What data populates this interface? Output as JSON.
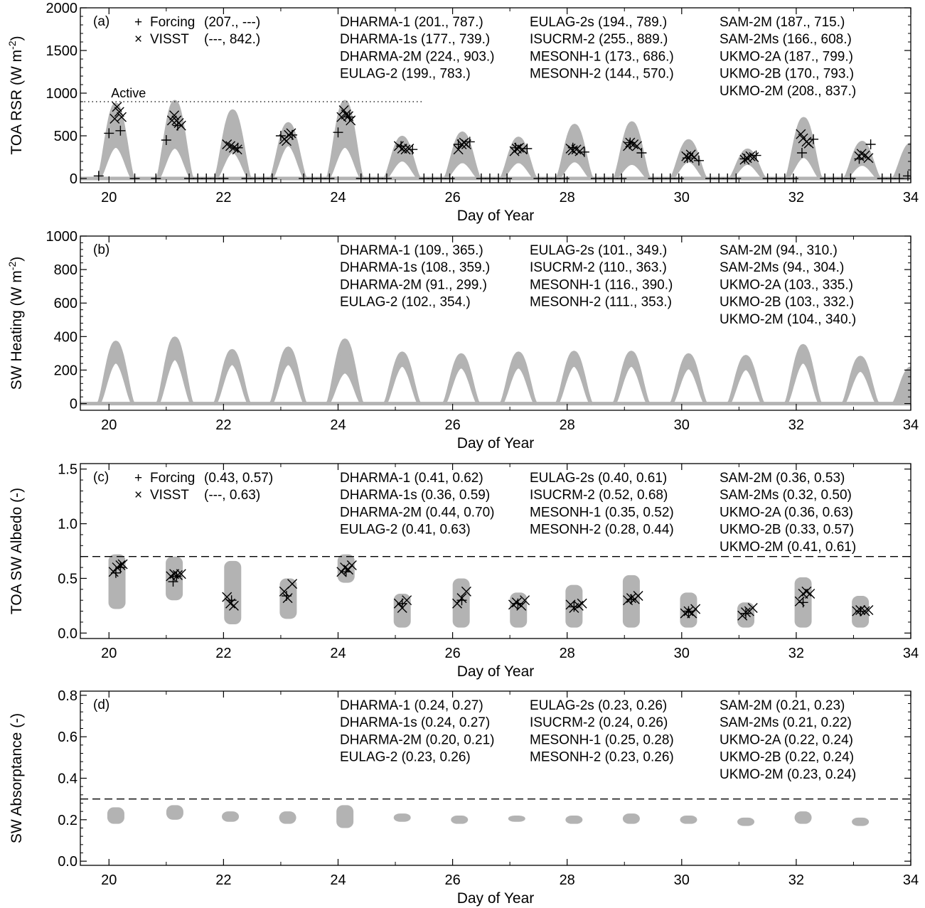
{
  "chart_data": [
    {
      "type": "scatter",
      "panel_label": "(a)",
      "ylabel": "TOA RSR (W m",
      "ylabel_sup": "-2",
      "ylabel_close": ")",
      "xlabel": "Day of Year",
      "xlim": [
        19.5,
        34
      ],
      "ylim": [
        -50,
        2000
      ],
      "xticks": [
        "20",
        "22",
        "24",
        "26",
        "28",
        "30",
        "32",
        "34"
      ],
      "yticks": [
        "0",
        "500",
        "1000",
        "1500",
        "2000"
      ],
      "reference_line": {
        "style": "dotted",
        "y": 900,
        "x_end": 25.5,
        "label": "Active"
      },
      "envelope": {
        "mode": "diurnal",
        "peaks": [
          [
            20.12,
            380,
            870
          ],
          [
            21.15,
            370,
            900
          ],
          [
            22.16,
            320,
            790
          ],
          [
            23.13,
            400,
            640
          ],
          [
            24.12,
            380,
            900
          ],
          [
            25.12,
            220,
            480
          ],
          [
            26.17,
            200,
            530
          ],
          [
            27.15,
            200,
            470
          ],
          [
            28.13,
            210,
            620
          ],
          [
            29.13,
            180,
            650
          ],
          [
            30.12,
            210,
            440
          ],
          [
            31.15,
            180,
            330
          ],
          [
            32.13,
            260,
            700
          ],
          [
            33.15,
            170,
            420
          ],
          [
            34.0,
            0,
            400
          ]
        ]
      },
      "series": [
        {
          "name": "Forcing",
          "marker": "plus",
          "x": [
            19.82,
            20.0,
            20.2,
            20.45,
            20.82,
            21.0,
            21.2,
            21.4,
            21.55,
            21.7,
            21.85,
            22.0,
            22.25,
            22.4,
            22.55,
            22.7,
            22.85,
            23.0,
            23.2,
            23.4,
            23.55,
            23.7,
            23.85,
            24.0,
            24.2,
            24.4,
            24.55,
            24.7,
            24.85,
            25.1,
            25.3,
            25.5,
            25.65,
            25.8,
            25.95,
            26.1,
            26.3,
            26.5,
            26.65,
            26.8,
            26.95,
            27.1,
            27.3,
            27.5,
            27.65,
            27.8,
            27.95,
            28.1,
            28.3,
            28.5,
            28.65,
            28.8,
            28.95,
            29.1,
            29.3,
            29.5,
            29.65,
            29.8,
            29.95,
            30.1,
            30.3,
            30.5,
            30.65,
            30.8,
            30.95,
            31.1,
            31.3,
            31.5,
            31.65,
            31.8,
            31.95,
            32.1,
            32.3,
            32.5,
            32.65,
            32.8,
            32.95,
            33.1,
            33.3,
            33.5,
            33.65,
            33.8,
            33.95
          ],
          "y": [
            30,
            530,
            560,
            0,
            0,
            450,
            620,
            0,
            0,
            0,
            0,
            0,
            360,
            0,
            0,
            0,
            0,
            500,
            510,
            0,
            0,
            0,
            0,
            540,
            720,
            0,
            0,
            0,
            0,
            380,
            340,
            0,
            0,
            0,
            0,
            400,
            430,
            0,
            0,
            0,
            0,
            360,
            350,
            0,
            0,
            0,
            0,
            360,
            310,
            0,
            0,
            0,
            0,
            420,
            300,
            0,
            0,
            0,
            0,
            240,
            210,
            0,
            0,
            0,
            0,
            230,
            270,
            0,
            0,
            0,
            0,
            300,
            460,
            0,
            0,
            0,
            0,
            230,
            400,
            0,
            0,
            0,
            30
          ]
        },
        {
          "name": "VISST",
          "marker": "x",
          "x": [
            20.1,
            20.14,
            20.18,
            20.22,
            21.1,
            21.14,
            21.18,
            21.22,
            21.26,
            22.06,
            22.12,
            22.18,
            22.24,
            23.06,
            23.1,
            23.14,
            23.18,
            24.06,
            24.1,
            24.14,
            24.18,
            24.22,
            25.06,
            25.12,
            25.18,
            25.24,
            26.1,
            26.16,
            26.2,
            26.24,
            27.08,
            27.12,
            27.16,
            27.22,
            28.06,
            28.1,
            28.16,
            28.22,
            29.06,
            29.1,
            29.16,
            29.22,
            30.08,
            30.12,
            30.16,
            30.22,
            31.1,
            31.14,
            31.2,
            31.26,
            32.08,
            32.12,
            32.18,
            32.22,
            33.1,
            33.14,
            33.2,
            33.26
          ],
          "y": [
            700,
            840,
            780,
            720,
            680,
            740,
            680,
            650,
            620,
            400,
            380,
            360,
            340,
            460,
            440,
            510,
            530,
            720,
            800,
            750,
            730,
            680,
            380,
            350,
            340,
            350,
            340,
            400,
            420,
            400,
            320,
            350,
            360,
            340,
            350,
            330,
            340,
            320,
            380,
            420,
            400,
            380,
            260,
            240,
            280,
            250,
            220,
            240,
            260,
            250,
            520,
            470,
            430,
            410,
            260,
            290,
            270,
            240
          ]
        }
      ],
      "legend": [
        {
          "marker": "+",
          "name": "Forcing",
          "values": "(207., ---)"
        },
        {
          "marker": "×",
          "name": "VISST",
          "values": "(---, 842.)"
        }
      ],
      "model_columns": [
        [
          "DHARMA-1 (201., 787.)",
          "DHARMA-1s (177., 739.)",
          "DHARMA-2M (224., 903.)",
          "EULAG-2 (199., 783.)"
        ],
        [
          "EULAG-2s (194., 789.)",
          "ISUCRM-2 (255., 889.)",
          "MESONH-1 (173., 686.)",
          "MESONH-2 (144., 570.)"
        ],
        [
          "SAM-2M (187., 715.)",
          "SAM-2Ms (166., 608.)",
          "UKMO-2A (187., 799.)",
          "UKMO-2B (170., 793.)",
          "UKMO-2M (208., 837.)"
        ]
      ]
    },
    {
      "type": "area",
      "panel_label": "(b)",
      "ylabel": "SW Heating (W m",
      "ylabel_sup": "-2",
      "ylabel_close": ")",
      "xlabel": "Day of Year",
      "xlim": [
        19.5,
        34
      ],
      "ylim": [
        -40,
        1000
      ],
      "xticks": [
        "20",
        "22",
        "24",
        "26",
        "28",
        "30",
        "32",
        "34"
      ],
      "yticks": [
        "0",
        "200",
        "400",
        "600",
        "800",
        "1000"
      ],
      "envelope": {
        "mode": "diurnal",
        "peaks": [
          [
            20.12,
            250,
            365
          ],
          [
            21.15,
            270,
            390
          ],
          [
            22.15,
            240,
            315
          ],
          [
            23.13,
            240,
            330
          ],
          [
            24.12,
            190,
            378
          ],
          [
            25.12,
            230,
            300
          ],
          [
            26.15,
            220,
            290
          ],
          [
            27.15,
            220,
            300
          ],
          [
            28.12,
            230,
            305
          ],
          [
            29.12,
            230,
            305
          ],
          [
            30.12,
            215,
            290
          ],
          [
            31.12,
            210,
            280
          ],
          [
            32.12,
            250,
            345
          ],
          [
            33.12,
            200,
            275
          ],
          [
            34.0,
            0,
            210
          ]
        ]
      },
      "series": [],
      "legend": [],
      "model_columns": [
        [
          "DHARMA-1 (109., 365.)",
          "DHARMA-1s (108., 359.)",
          "DHARMA-2M (91., 299.)",
          "EULAG-2 (102., 354.)"
        ],
        [
          "EULAG-2s (101., 349.)",
          "ISUCRM-2 (110., 363.)",
          "MESONH-1 (116., 390.)",
          "MESONH-2 (111., 353.)"
        ],
        [
          "SAM-2M (94., 310.)",
          "SAM-2Ms (94., 304.)",
          "UKMO-2A (103., 335.)",
          "UKMO-2B (103., 332.)",
          "UKMO-2M (104., 340.)"
        ]
      ]
    },
    {
      "type": "scatter",
      "panel_label": "(c)",
      "ylabel": "TOA SW Albedo (-)",
      "ylabel_sup": "",
      "ylabel_close": "",
      "xlabel": "Day of Year",
      "xlim": [
        19.5,
        34
      ],
      "ylim": [
        -0.05,
        1.55
      ],
      "xticks": [
        "20",
        "22",
        "24",
        "26",
        "28",
        "30",
        "32",
        "34"
      ],
      "yticks": [
        "0.0",
        "0.5",
        "1.0",
        "1.5"
      ],
      "reference_line": {
        "style": "dashed",
        "y": 0.7
      },
      "envelope": {
        "mode": "blobs",
        "blobs": [
          [
            20.14,
            0.22,
            0.72
          ],
          [
            21.14,
            0.3,
            0.7
          ],
          [
            22.16,
            0.08,
            0.66
          ],
          [
            23.13,
            0.13,
            0.5
          ],
          [
            24.14,
            0.46,
            0.72
          ],
          [
            25.12,
            0.05,
            0.36
          ],
          [
            26.15,
            0.05,
            0.5
          ],
          [
            27.15,
            0.05,
            0.37
          ],
          [
            28.12,
            0.05,
            0.44
          ],
          [
            29.12,
            0.05,
            0.53
          ],
          [
            30.12,
            0.05,
            0.37
          ],
          [
            31.12,
            0.05,
            0.28
          ],
          [
            32.12,
            0.05,
            0.51
          ],
          [
            33.12,
            0.05,
            0.34
          ]
        ]
      },
      "series": [
        {
          "name": "Forcing",
          "marker": "plus",
          "x": [
            20.12,
            20.2,
            21.12,
            21.18,
            22.14,
            23.1,
            24.14,
            25.12,
            26.16,
            27.14,
            28.12,
            29.12,
            30.12,
            31.12,
            32.12,
            33.12
          ],
          "y": [
            0.55,
            0.6,
            0.47,
            0.52,
            0.3,
            0.34,
            0.56,
            0.27,
            0.3,
            0.27,
            0.24,
            0.31,
            0.2,
            0.18,
            0.28,
            0.2
          ],
          "note": ""
        },
        {
          "name": "VISST",
          "marker": "x",
          "x": [
            20.08,
            20.14,
            20.2,
            20.24,
            21.08,
            21.14,
            21.2,
            21.26,
            22.06,
            22.12,
            22.18,
            23.06,
            23.12,
            23.2,
            24.06,
            24.12,
            24.18,
            24.24,
            25.06,
            25.12,
            25.2,
            26.08,
            26.16,
            26.24,
            27.06,
            27.12,
            27.2,
            27.26,
            28.06,
            28.12,
            28.2,
            28.26,
            29.06,
            29.12,
            29.18,
            29.24,
            30.06,
            30.12,
            30.18,
            30.24,
            31.06,
            31.12,
            31.18,
            31.24,
            32.06,
            32.12,
            32.18,
            32.24,
            33.06,
            33.12,
            33.2,
            33.26
          ],
          "y": [
            0.56,
            0.6,
            0.62,
            0.63,
            0.52,
            0.54,
            0.53,
            0.54,
            0.33,
            0.27,
            0.25,
            0.38,
            0.32,
            0.45,
            0.56,
            0.6,
            0.58,
            0.62,
            0.27,
            0.23,
            0.3,
            0.27,
            0.32,
            0.38,
            0.26,
            0.28,
            0.25,
            0.3,
            0.26,
            0.23,
            0.25,
            0.27,
            0.3,
            0.32,
            0.31,
            0.34,
            0.18,
            0.2,
            0.18,
            0.22,
            0.16,
            0.19,
            0.2,
            0.23,
            0.29,
            0.36,
            0.38,
            0.36,
            0.2,
            0.21,
            0.2,
            0.21
          ]
        }
      ],
      "legend": [
        {
          "marker": "+",
          "name": "Forcing",
          "values": "(0.43, 0.57)"
        },
        {
          "marker": "×",
          "name": "VISST",
          "values": "(---, 0.63)"
        }
      ],
      "model_columns": [
        [
          "DHARMA-1 (0.41, 0.62)",
          "DHARMA-1s (0.36, 0.59)",
          "DHARMA-2M (0.44, 0.70)",
          "EULAG-2 (0.41, 0.63)"
        ],
        [
          "EULAG-2s (0.40, 0.61)",
          "ISUCRM-2 (0.52, 0.68)",
          "MESONH-1 (0.35, 0.52)",
          "MESONH-2 (0.28, 0.44)"
        ],
        [
          "SAM-2M (0.36, 0.53)",
          "SAM-2Ms (0.32, 0.50)",
          "UKMO-2A (0.36, 0.63)",
          "UKMO-2B (0.33, 0.57)",
          "UKMO-2M (0.41, 0.61)"
        ]
      ]
    },
    {
      "type": "scatter",
      "panel_label": "(d)",
      "ylabel": "SW Absorptance (-)",
      "ylabel_sup": "",
      "ylabel_close": "",
      "xlabel": "Day of Year",
      "xlim": [
        19.5,
        34
      ],
      "ylim": [
        -0.02,
        0.82
      ],
      "xticks": [
        "20",
        "22",
        "24",
        "26",
        "28",
        "30",
        "32",
        "34"
      ],
      "yticks": [
        "0.0",
        "0.2",
        "0.4",
        "0.6",
        "0.8"
      ],
      "reference_line": {
        "style": "dashed",
        "y": 0.3
      },
      "envelope": {
        "mode": "blobs",
        "blobs": [
          [
            20.12,
            0.18,
            0.26
          ],
          [
            21.15,
            0.2,
            0.27
          ],
          [
            22.12,
            0.19,
            0.24
          ],
          [
            23.12,
            0.18,
            0.24
          ],
          [
            24.12,
            0.16,
            0.27
          ],
          [
            25.12,
            0.19,
            0.23
          ],
          [
            26.12,
            0.18,
            0.22
          ],
          [
            27.12,
            0.19,
            0.22
          ],
          [
            28.12,
            0.18,
            0.22
          ],
          [
            29.12,
            0.18,
            0.23
          ],
          [
            30.12,
            0.18,
            0.22
          ],
          [
            31.12,
            0.17,
            0.21
          ],
          [
            32.12,
            0.18,
            0.24
          ],
          [
            33.12,
            0.17,
            0.21
          ]
        ]
      },
      "series": [],
      "legend": [],
      "model_columns": [
        [
          "DHARMA-1 (0.24, 0.27)",
          "DHARMA-1s (0.24, 0.27)",
          "DHARMA-2M (0.20, 0.21)",
          "EULAG-2 (0.23, 0.26)"
        ],
        [
          "EULAG-2s (0.23, 0.26)",
          "ISUCRM-2 (0.24, 0.26)",
          "MESONH-1 (0.25, 0.28)",
          "MESONH-2 (0.23, 0.26)"
        ],
        [
          "SAM-2M (0.21, 0.23)",
          "SAM-2Ms (0.21, 0.22)",
          "UKMO-2A (0.22, 0.24)",
          "UKMO-2B (0.22, 0.24)",
          "UKMO-2M (0.23, 0.24)"
        ]
      ]
    }
  ],
  "colors": {
    "model_envelope": "#b3b3b3",
    "axes": "#000000",
    "markers": "#000000",
    "background": "#ffffff"
  }
}
